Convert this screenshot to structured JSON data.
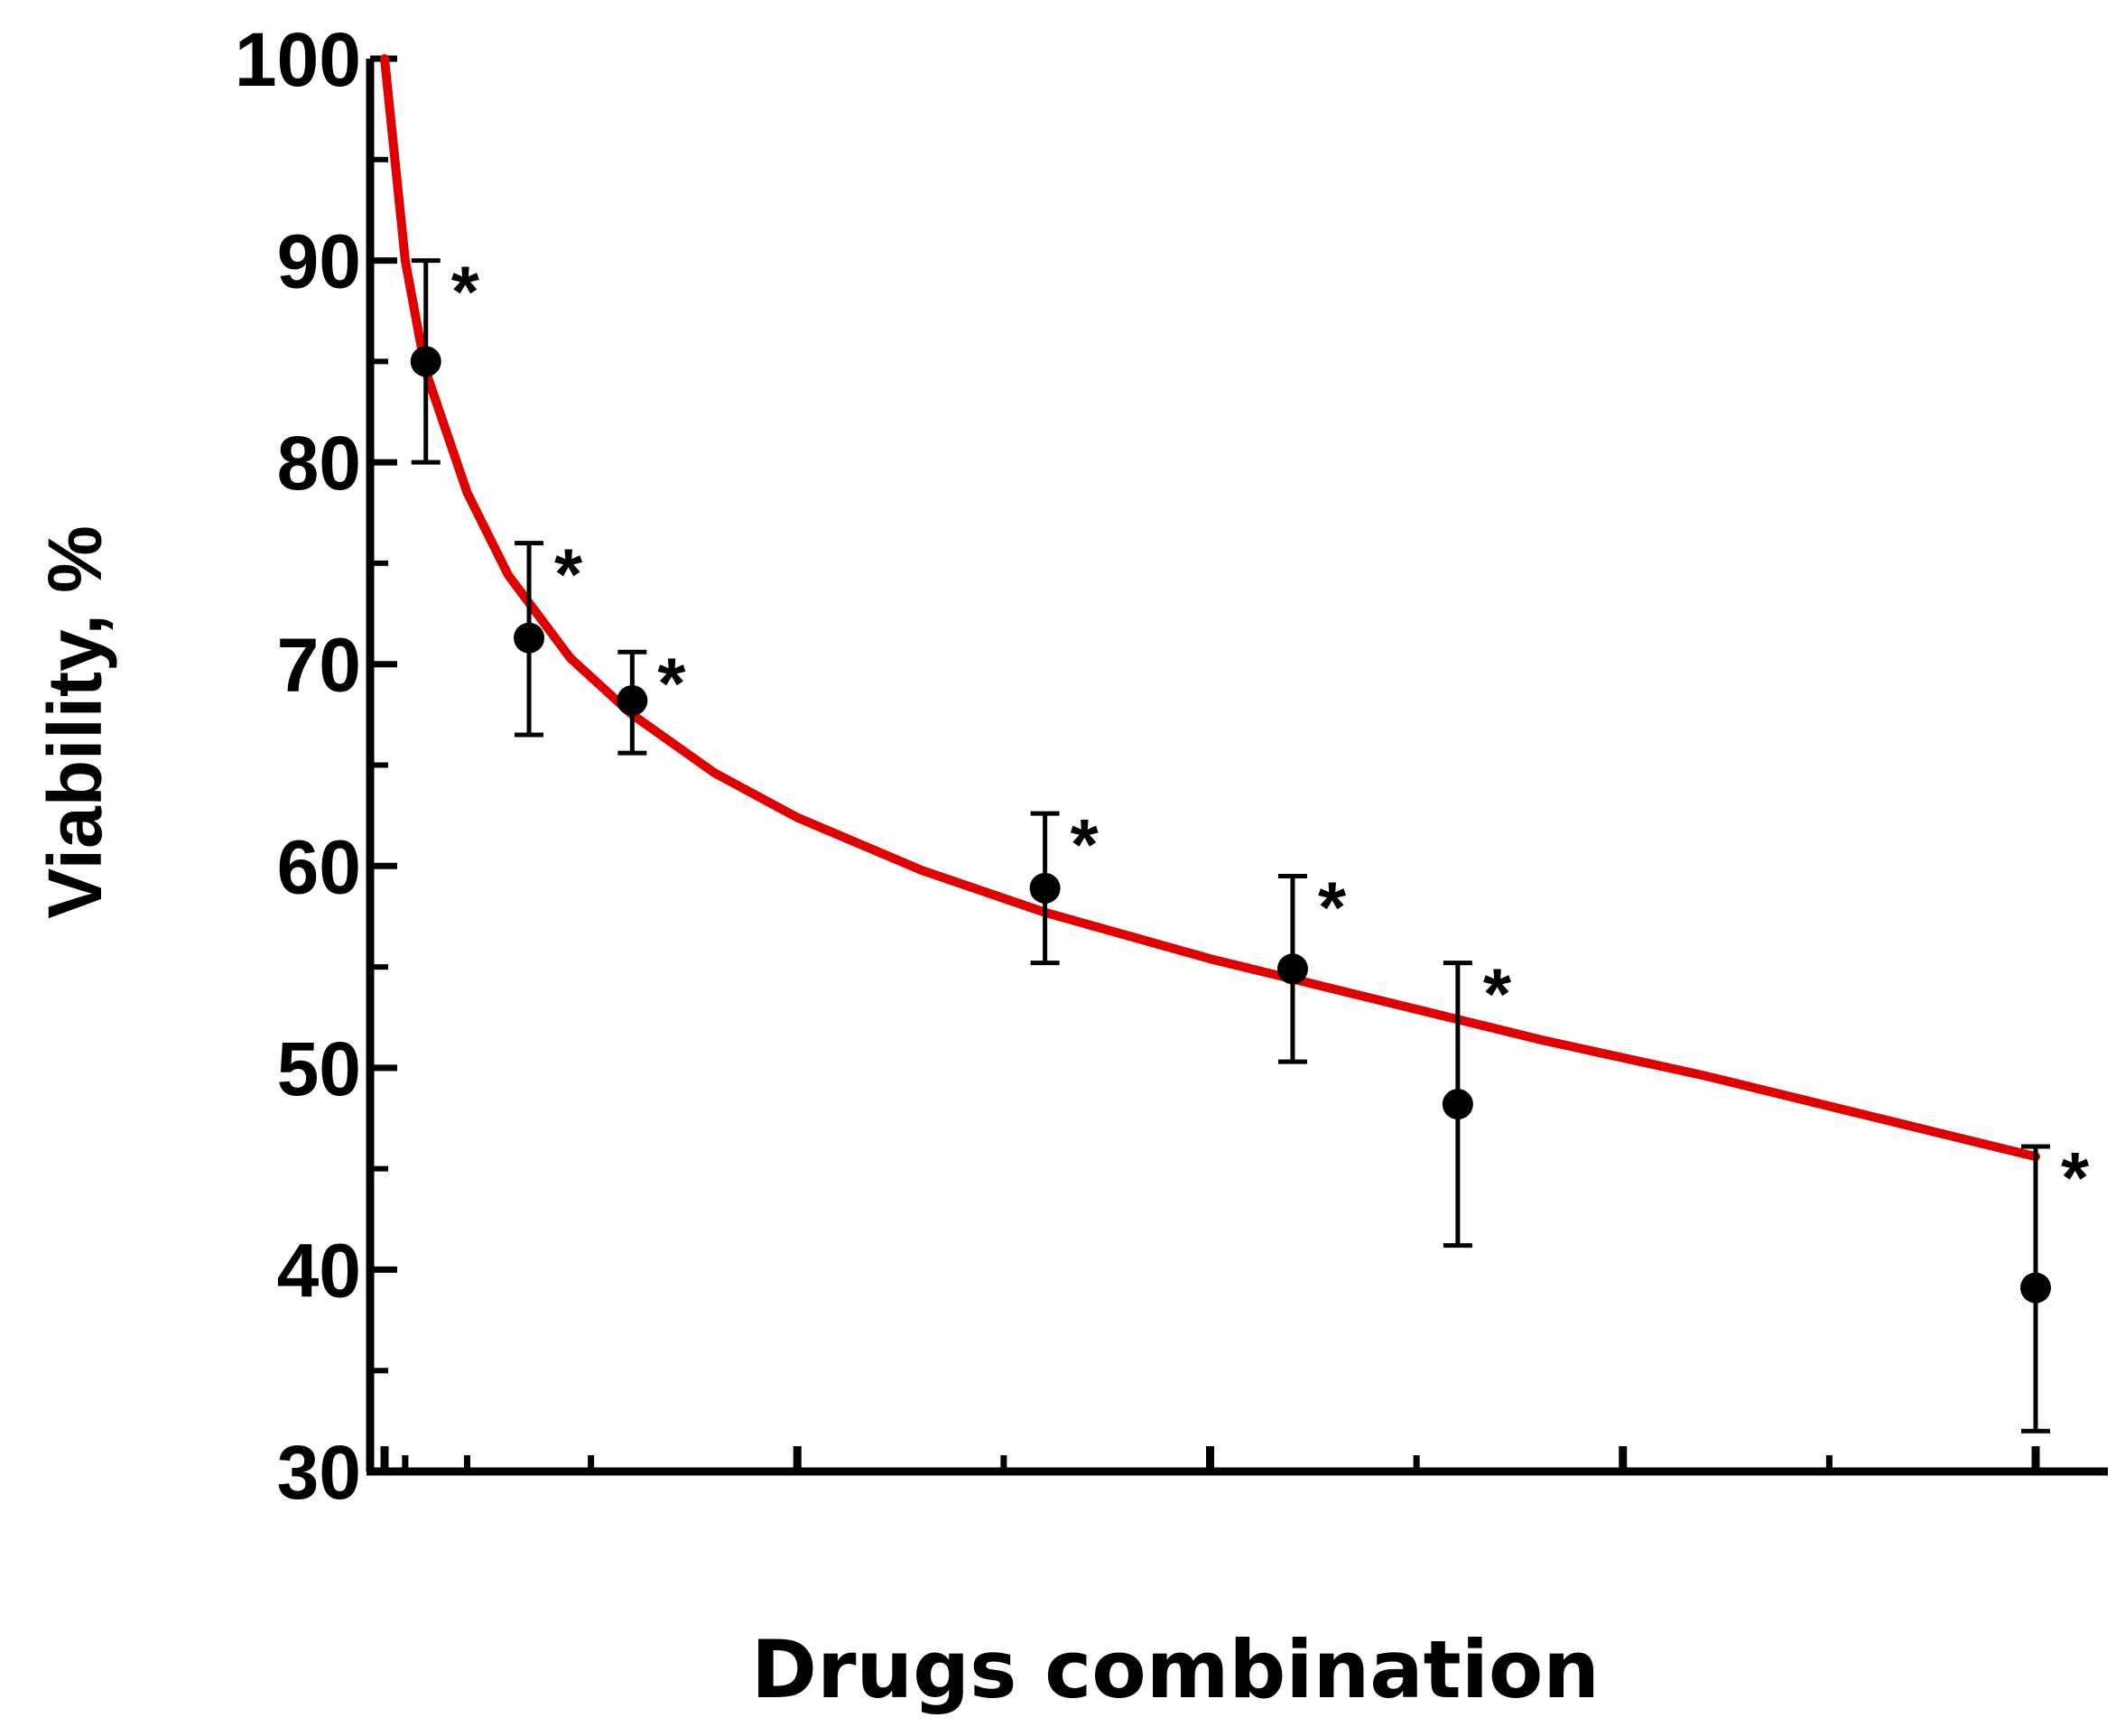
{
  "chart_data": {
    "type": "scatter",
    "title": "",
    "xlabel": "Drugs combination",
    "ylabel": "Viability, %",
    "ylim": [
      30,
      100
    ],
    "yticks": [
      "30",
      "40",
      "50",
      "60",
      "70",
      "80",
      "90",
      "100"
    ],
    "xlim": [
      0,
      4
    ],
    "x_tick_labels_shown": false,
    "grid": false,
    "legend": "none",
    "points": [
      {
        "x": 0.1,
        "y": 85,
        "err_low": 80,
        "err_high": 90,
        "marker": "*"
      },
      {
        "x": 0.35,
        "y": 71.3,
        "err_low": 66.5,
        "err_high": 76,
        "marker": "*"
      },
      {
        "x": 0.6,
        "y": 68.2,
        "err_low": 65.6,
        "err_high": 70.6,
        "marker": "*"
      },
      {
        "x": 1.6,
        "y": 58.9,
        "err_low": 55.2,
        "err_high": 62.6,
        "marker": "*"
      },
      {
        "x": 2.2,
        "y": 54.9,
        "err_low": 50.3,
        "err_high": 59.5,
        "marker": "*"
      },
      {
        "x": 2.6,
        "y": 48.2,
        "err_low": 41.2,
        "err_high": 55.2,
        "marker": "*"
      },
      {
        "x": 4.0,
        "y": 39.1,
        "err_low": 32,
        "err_high": 46.1,
        "marker": "*"
      }
    ],
    "fit_curve": {
      "color": "#e00000",
      "points": [
        [
          0.0,
          100
        ],
        [
          0.05,
          90
        ],
        [
          0.1,
          84.5
        ],
        [
          0.2,
          78.5
        ],
        [
          0.3,
          74.4
        ],
        [
          0.45,
          70.3
        ],
        [
          0.6,
          67.5
        ],
        [
          0.8,
          64.6
        ],
        [
          1.0,
          62.4
        ],
        [
          1.3,
          59.8
        ],
        [
          1.6,
          57.7
        ],
        [
          2.0,
          55.4
        ],
        [
          2.4,
          53.4
        ],
        [
          2.8,
          51.4
        ],
        [
          3.2,
          49.6
        ],
        [
          3.6,
          47.6
        ],
        [
          4.0,
          45.6
        ]
      ]
    },
    "colors": {
      "axis": "#000000",
      "points": "#000000",
      "fit": "#e00000"
    }
  }
}
